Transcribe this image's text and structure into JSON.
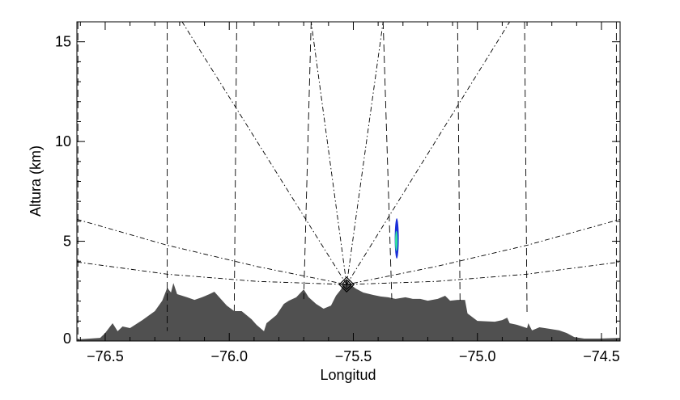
{
  "chart_data": {
    "type": "area",
    "xlabel": "Longitud",
    "ylabel": "Altura (km)",
    "xlim": [
      -76.614,
      -74.425
    ],
    "ylim": [
      0,
      16
    ],
    "xticks": [
      -76.5,
      -76.0,
      -75.5,
      -75.0,
      -74.5
    ],
    "xtick_labels": [
      "−76.5",
      "−76.0",
      "−75.5",
      "−75.0",
      "−74.5"
    ],
    "xminor_step": 0.1,
    "yticks": [
      0,
      5,
      10,
      15
    ],
    "ytick_labels": [
      "0",
      "5",
      "10",
      "15"
    ],
    "yminor_step": 1,
    "grid": false,
    "terrain_color": "#505050",
    "terrain": [
      [
        -76.61,
        0.08
      ],
      [
        -76.52,
        0.16
      ],
      [
        -76.5,
        0.4
      ],
      [
        -76.47,
        0.89
      ],
      [
        -76.45,
        0.49
      ],
      [
        -76.43,
        0.73
      ],
      [
        -76.4,
        0.65
      ],
      [
        -76.35,
        1.05
      ],
      [
        -76.3,
        1.5
      ],
      [
        -76.27,
        2.02
      ],
      [
        -76.25,
        2.67
      ],
      [
        -76.235,
        2.43
      ],
      [
        -76.225,
        2.91
      ],
      [
        -76.21,
        2.35
      ],
      [
        -76.17,
        2.19
      ],
      [
        -76.14,
        2.06
      ],
      [
        -76.11,
        2.19
      ],
      [
        -76.08,
        2.35
      ],
      [
        -76.06,
        2.47
      ],
      [
        -76.04,
        2.19
      ],
      [
        -76.01,
        1.78
      ],
      [
        -75.98,
        1.5
      ],
      [
        -75.95,
        1.5
      ],
      [
        -75.91,
        1.09
      ],
      [
        -75.89,
        0.81
      ],
      [
        -75.86,
        0.49
      ],
      [
        -75.85,
        0.89
      ],
      [
        -75.81,
        1.3
      ],
      [
        -75.78,
        1.86
      ],
      [
        -75.76,
        2.02
      ],
      [
        -75.73,
        2.19
      ],
      [
        -75.7,
        2.59
      ],
      [
        -75.68,
        2.19
      ],
      [
        -75.65,
        1.86
      ],
      [
        -75.62,
        1.62
      ],
      [
        -75.59,
        1.78
      ],
      [
        -75.57,
        2.27
      ],
      [
        -75.55,
        2.59
      ],
      [
        -75.54,
        2.83
      ],
      [
        -75.52,
        2.91
      ],
      [
        -75.49,
        2.63
      ],
      [
        -75.46,
        2.43
      ],
      [
        -75.42,
        2.31
      ],
      [
        -75.39,
        2.23
      ],
      [
        -75.36,
        2.19
      ],
      [
        -75.33,
        2.11
      ],
      [
        -75.29,
        2.19
      ],
      [
        -75.26,
        2.11
      ],
      [
        -75.23,
        2.11
      ],
      [
        -75.2,
        2.02
      ],
      [
        -75.16,
        2.11
      ],
      [
        -75.13,
        2.27
      ],
      [
        -75.11,
        2.02
      ],
      [
        -75.08,
        2.06
      ],
      [
        -75.05,
        2.06
      ],
      [
        -75.04,
        1.38
      ],
      [
        -75.0,
        1.01
      ],
      [
        -74.93,
        0.97
      ],
      [
        -74.9,
        1.05
      ],
      [
        -74.88,
        1.17
      ],
      [
        -74.87,
        0.89
      ],
      [
        -74.84,
        0.81
      ],
      [
        -74.8,
        0.65
      ],
      [
        -74.795,
        0.89
      ],
      [
        -74.78,
        0.53
      ],
      [
        -74.75,
        0.69
      ],
      [
        -74.71,
        0.61
      ],
      [
        -74.67,
        0.53
      ],
      [
        -74.64,
        0.4
      ],
      [
        -74.61,
        0.2
      ],
      [
        -74.57,
        0.12
      ],
      [
        -74.51,
        0.12
      ],
      [
        -74.425,
        0.16
      ]
    ],
    "radar": {
      "lon": -75.527,
      "alt": 2.83,
      "marker": "diamond"
    },
    "range_lines": [
      {
        "top": -76.61,
        "bottom": -76.61,
        "bottom_alt": 0
      },
      {
        "top": -76.25,
        "bottom": -76.25,
        "bottom_alt": 0.5
      },
      {
        "top": -75.97,
        "bottom": -75.98,
        "bottom_alt": 1.5
      },
      {
        "top": -75.67,
        "bottom": -75.7,
        "bottom_alt": 2.1
      },
      {
        "top": -75.38,
        "bottom": -75.345,
        "bottom_alt": 2.1
      },
      {
        "top": -75.08,
        "bottom": -75.07,
        "bottom_alt": 2.0
      },
      {
        "top": -74.81,
        "bottom": -74.8,
        "bottom_alt": 1.4
      },
      {
        "top": -74.44,
        "bottom": -74.44,
        "bottom_alt": 0
      }
    ],
    "steep_beams_top_lon": [
      -76.19,
      -75.67,
      -75.38,
      -74.87
    ],
    "low_beams": [
      [
        [
          -76.614,
          6.1
        ],
        [
          -76.25,
          4.8
        ],
        [
          -75.89,
          3.74
        ],
        [
          -75.527,
          2.83
        ],
        [
          -75.165,
          3.74
        ],
        [
          -74.8,
          4.8
        ],
        [
          -74.425,
          6.1
        ]
      ],
      [
        [
          -76.614,
          3.96
        ],
        [
          -76.25,
          3.35
        ],
        [
          -75.89,
          2.99
        ],
        [
          -75.527,
          2.83
        ],
        [
          -75.165,
          2.99
        ],
        [
          -74.8,
          3.35
        ],
        [
          -74.425,
          3.96
        ]
      ]
    ],
    "echo": {
      "lon": -75.325,
      "alt_min": 4.13,
      "alt_max": 6.15,
      "outer_color": "#1a2fd8",
      "inner_color": "#33e0a0"
    }
  }
}
